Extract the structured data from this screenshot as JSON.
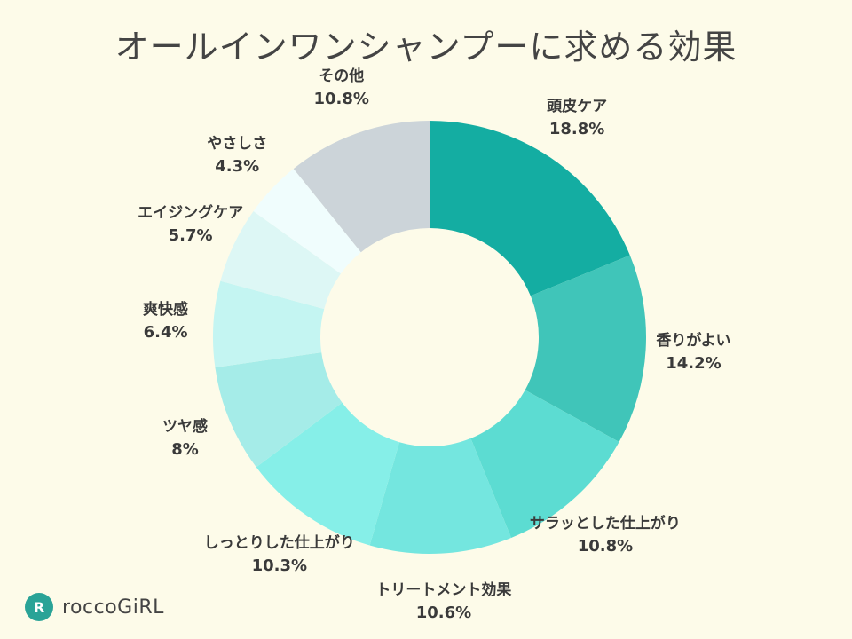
{
  "chart_data": {
    "type": "pie",
    "title": "オールインワンシャンプーに求める効果",
    "unit": "%",
    "series": [
      {
        "label": "頭皮ケア",
        "value": 18.8,
        "value_label": "18.8%",
        "color": "#14ada2"
      },
      {
        "label": "香りがよい",
        "value": 14.2,
        "value_label": "14.2%",
        "color": "#40c5b9"
      },
      {
        "label": "サラッとした仕上がり",
        "value": 10.8,
        "value_label": "10.8%",
        "color": "#5cdcd2"
      },
      {
        "label": "トリートメント効果",
        "value": 10.6,
        "value_label": "10.6%",
        "color": "#74e6df"
      },
      {
        "label": "しっとりした仕上がり",
        "value": 10.3,
        "value_label": "10.3%",
        "color": "#86efe8"
      },
      {
        "label": "ツヤ感",
        "value": 8,
        "value_label": "8%",
        "color": "#a5ece8"
      },
      {
        "label": "爽快感",
        "value": 6.4,
        "value_label": "6.4%",
        "color": "#c4f5f2"
      },
      {
        "label": "エイジングケア",
        "value": 5.7,
        "value_label": "5.7%",
        "color": "#ddf7f5"
      },
      {
        "label": "やさしさ",
        "value": 4.3,
        "value_label": "4.3%",
        "color": "#f0fdfd"
      },
      {
        "label": "その他",
        "value": 10.8,
        "value_label": "10.8%",
        "color": "#ccd4d9"
      }
    ]
  },
  "brand": {
    "icon_letter": "R",
    "name": "roccoGiRL",
    "icon_color": "#2aa397"
  }
}
